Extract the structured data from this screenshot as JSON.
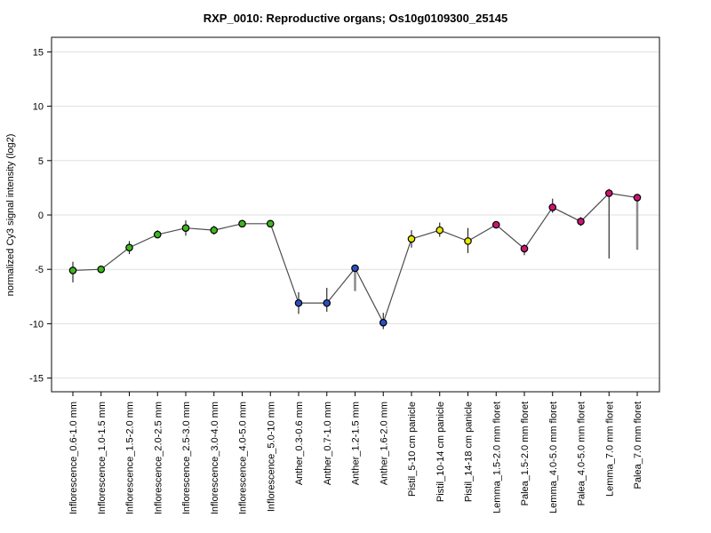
{
  "chart_data": {
    "type": "line",
    "title": "RXP_0010: Reproductive organs; Os10g0109300_25145",
    "xlabel": "",
    "ylabel": "normalized Cy3 signal intensity (log2)",
    "ylim": [
      -16.3,
      16.3
    ],
    "yticks": [
      15,
      10,
      5,
      0,
      -5,
      -10,
      -15
    ],
    "grid": true,
    "legend": false,
    "group_colors": {
      "Inflorescence": "#3FB61E",
      "Anther": "#2B4FC2",
      "Pistil": "#E8E800",
      "Lemma": "#CE1472",
      "Palea": "#CE1472"
    },
    "colors": {
      "line": "#4D4D4D",
      "errorbar": "#1A1A1A",
      "errorbar_thick": "#8C8C8C",
      "grid": "#DFDFDF",
      "box": "#333333",
      "tick": "#000000",
      "marker_stroke": "#000000"
    },
    "points": [
      {
        "label": "Inflorescence_0.6-1.0 mm",
        "group": "Inflorescence",
        "value": -5.1,
        "err_lo": -6.2,
        "err_hi": -4.3
      },
      {
        "label": "Inflorescence_1.0-1.5 mm",
        "group": "Inflorescence",
        "value": -5.0,
        "err_lo": null,
        "err_hi": null
      },
      {
        "label": "Inflorescence_1.5-2.0 mm",
        "group": "Inflorescence",
        "value": -3.0,
        "err_lo": -3.6,
        "err_hi": -2.4
      },
      {
        "label": "Inflorescence_2.0-2.5 mm",
        "group": "Inflorescence",
        "value": -1.8,
        "err_lo": -2.1,
        "err_hi": -1.4
      },
      {
        "label": "Inflorescence_2.5-3.0 mm",
        "group": "Inflorescence",
        "value": -1.2,
        "err_lo": -1.9,
        "err_hi": -0.5
      },
      {
        "label": "Inflorescence_3.0-4.0 mm",
        "group": "Inflorescence",
        "value": -1.4,
        "err_lo": -1.8,
        "err_hi": -1.0
      },
      {
        "label": "Inflorescence_4.0-5.0 mm",
        "group": "Inflorescence",
        "value": -0.8,
        "err_lo": null,
        "err_hi": null
      },
      {
        "label": "Inflorescence_5.0-10 mm",
        "group": "Inflorescence",
        "value": -0.8,
        "err_lo": null,
        "err_hi": null
      },
      {
        "label": "Anther_0.3-0.6 mm",
        "group": "Anther",
        "value": -8.1,
        "err_lo": -9.1,
        "err_hi": -7.1
      },
      {
        "label": "Anther_0.7-1.0 mm",
        "group": "Anther",
        "value": -8.1,
        "err_lo": -8.9,
        "err_hi": -6.7
      },
      {
        "label": "Anther_1.2-1.5 mm",
        "group": "Anther",
        "value": -4.9,
        "err_lo": -7.0,
        "err_hi": -4.6,
        "err_style": "thick"
      },
      {
        "label": "Anther_1.6-2.0 mm",
        "group": "Anther",
        "value": -9.9,
        "err_lo": -10.5,
        "err_hi": -9.0
      },
      {
        "label": "Pistil_5-10 cm panicle",
        "group": "Pistil",
        "value": -2.2,
        "err_lo": -3.0,
        "err_hi": -1.4
      },
      {
        "label": "Pistil_10-14 cm panicle",
        "group": "Pistil",
        "value": -1.4,
        "err_lo": -2.0,
        "err_hi": -0.7
      },
      {
        "label": "Pistil_14-18 cm panicle",
        "group": "Pistil",
        "value": -2.4,
        "err_lo": -3.5,
        "err_hi": -1.2
      },
      {
        "label": "Lemma_1.5-2.0 mm floret",
        "group": "Lemma",
        "value": -0.9,
        "err_lo": null,
        "err_hi": null
      },
      {
        "label": "Palea_1.5-2.0 mm floret",
        "group": "Palea",
        "value": -3.1,
        "err_lo": -3.7,
        "err_hi": -2.7
      },
      {
        "label": "Lemma_4.0-5.0 mm floret",
        "group": "Lemma",
        "value": 0.7,
        "err_lo": 0.2,
        "err_hi": 1.5
      },
      {
        "label": "Palea_4.0-5.0 mm floret",
        "group": "Palea",
        "value": -0.6,
        "err_lo": -1.0,
        "err_hi": -0.2
      },
      {
        "label": "Lemma_7.0 mm floret",
        "group": "Lemma",
        "value": 2.0,
        "err_lo": -4.0,
        "err_hi": 2.4
      },
      {
        "label": "Palea_7.0 mm floret",
        "group": "Palea",
        "value": 1.6,
        "err_lo": -3.2,
        "err_hi": 1.9,
        "err_style": "thick"
      }
    ]
  }
}
